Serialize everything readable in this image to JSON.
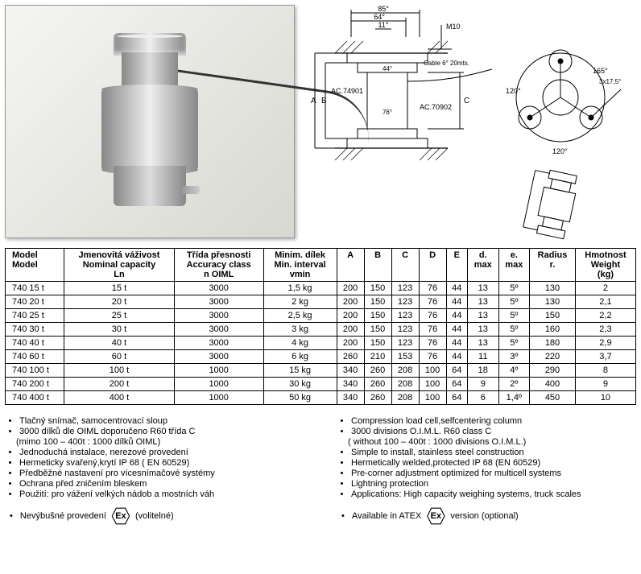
{
  "diagram": {
    "dim_top1": "85°",
    "dim_top2": "64°",
    "dim_top3": "11°",
    "m10": "M10",
    "cable": "Cable  6° 20mts.",
    "ac1": "AC.74901",
    "ac2": "AC.70902",
    "d44": "44°",
    "d76": "76°",
    "ang120a": "120°",
    "ang120b": "120°",
    "ang165": "165°",
    "ang3x175": "3x17,5°",
    "axis_a": "A",
    "axis_b": "B",
    "axis_c": "C"
  },
  "table": {
    "headers": {
      "model1": "Model",
      "model2": "Model",
      "cap1": "Jmenovitá váživost",
      "cap2": "Nominal capacity",
      "cap3": "Ln",
      "acc1": "Třída přesnosti",
      "acc2": "Accuracy class",
      "acc3": "n OIML",
      "min1": "Minim. dílek",
      "min2": "Min. interval",
      "min3": "vmin",
      "A": "A",
      "B": "B",
      "C": "C",
      "D": "D",
      "E": "E",
      "dmax1": "d.",
      "dmax2": "max",
      "emax1": "e.",
      "emax2": "max",
      "rad1": "Radius",
      "rad2": "r.",
      "wt1": "Hmotnost",
      "wt2": "Weight",
      "wt3": "(kg)"
    },
    "rows": [
      {
        "model": "740    15 t",
        "cap": "15 t",
        "acc": "3000",
        "min": "1,5 kg",
        "A": "200",
        "B": "150",
        "C": "123",
        "D": "76",
        "E": "44",
        "d": "13",
        "e": "5º",
        "r": "130",
        "w": "2"
      },
      {
        "model": "740    20 t",
        "cap": "20 t",
        "acc": "3000",
        "min": "2 kg",
        "A": "200",
        "B": "150",
        "C": "123",
        "D": "76",
        "E": "44",
        "d": "13",
        "e": "5º",
        "r": "130",
        "w": "2,1"
      },
      {
        "model": "740    25 t",
        "cap": "25 t",
        "acc": "3000",
        "min": "2,5 kg",
        "A": "200",
        "B": "150",
        "C": "123",
        "D": "76",
        "E": "44",
        "d": "13",
        "e": "5º",
        "r": "150",
        "w": "2,2"
      },
      {
        "model": "740    30 t",
        "cap": "30 t",
        "acc": "3000",
        "min": "3 kg",
        "A": "200",
        "B": "150",
        "C": "123",
        "D": "76",
        "E": "44",
        "d": "13",
        "e": "5º",
        "r": "160",
        "w": "2,3"
      },
      {
        "model": "740    40 t",
        "cap": "40 t",
        "acc": "3000",
        "min": "4 kg",
        "A": "200",
        "B": "150",
        "C": "123",
        "D": "76",
        "E": "44",
        "d": "13",
        "e": "5º",
        "r": "180",
        "w": "2,9"
      },
      {
        "model": "740    60 t",
        "cap": "60 t",
        "acc": "3000",
        "min": "6 kg",
        "A": "260",
        "B": "210",
        "C": "153",
        "D": "76",
        "E": "44",
        "d": "11",
        "e": "3º",
        "r": "220",
        "w": "3,7"
      },
      {
        "model": "740  100 t",
        "cap": "100 t",
        "acc": "1000",
        "min": "15 kg",
        "A": "340",
        "B": "260",
        "C": "208",
        "D": "100",
        "E": "64",
        "d": "18",
        "e": "4º",
        "r": "290",
        "w": "8"
      },
      {
        "model": "740  200 t",
        "cap": "200 t",
        "acc": "1000",
        "min": "30 kg",
        "A": "340",
        "B": "260",
        "C": "208",
        "D": "100",
        "E": "64",
        "d": "9",
        "e": "2º",
        "r": "400",
        "w": "9"
      },
      {
        "model": "740  400 t",
        "cap": "400 t",
        "acc": "1000",
        "min": "50 kg",
        "A": "340",
        "B": "260",
        "C": "208",
        "D": "100",
        "E": "64",
        "d": "6",
        "e": "1,4º",
        "r": "450",
        "w": "10"
      }
    ]
  },
  "bullets": {
    "left": [
      "Tlačný snímač, samocentrovací sloup",
      "3000 dílků dle OIML doporučeno R60 třída C",
      "(mimo 100 – 400t  : 1000 dílků OIML)",
      "Jednoduchá instalace, nerezové provedení",
      "Hermeticky svařený,krytí IP 68 ( EN 60529)",
      "Předběžné nastavení pro vícesnímačové systémy",
      "Ochrana před zničením bleskem",
      "Použití: pro vážení velkých nádob a mostních váh"
    ],
    "right": [
      "Compression load cell,selfcentering column",
      "3000 divisions O.I.M.L. R60 class C",
      "( without 100 – 400t : 1000 divisions O.I.M.L.)",
      "Simple to install, stainless steel construction",
      "Hermetically welded,protected IP 68 (EN 60529)",
      "Pre-corner adjustment optimized for multicell systems",
      "Lightning protection",
      "Applications: High capacity weighing systems, truck scales"
    ],
    "atex_left_pre": "Nevýbušné provedení",
    "atex_left_post": "(volitelné)",
    "atex_right_pre": "Available in ATEX",
    "atex_right_post": "version (optional)",
    "ex": "Ex"
  }
}
